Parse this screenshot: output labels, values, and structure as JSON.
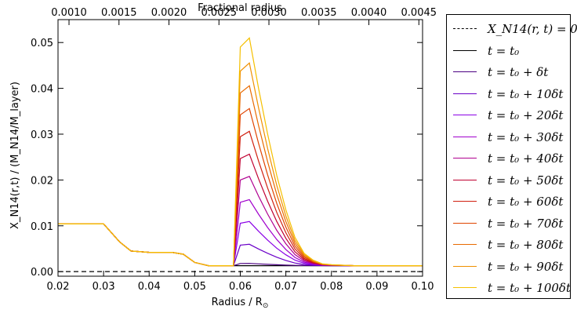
{
  "chart_data": {
    "type": "line",
    "xlabel": "Radius / R",
    "xlabel_sub": "⊙",
    "x2label": "Fractional radius",
    "ylabel": "X_N14(r,t) / (M_N14/M_layer)",
    "xlim": [
      0.02,
      0.1
    ],
    "ylim": [
      -0.001,
      0.055
    ],
    "x2lim": [
      0.00089,
      0.004537
    ],
    "xticks": [
      "0.02",
      "0.03",
      "0.04",
      "0.05",
      "0.06",
      "0.07",
      "0.08",
      "0.09",
      "0.10"
    ],
    "yticks": [
      "0.00",
      "0.01",
      "0.02",
      "0.03",
      "0.04",
      "0.05"
    ],
    "x2ticks": [
      "0.0010",
      "0.0015",
      "0.0020",
      "0.0025",
      "0.0030",
      "0.0035",
      "0.0040",
      "0.0045"
    ],
    "grid": false,
    "legend_position": "outside right",
    "zero_line": {
      "name": "X_N14(r,t) = 0",
      "label": "X_N14(r, t) = 0",
      "color": "#000000",
      "style": "dashed",
      "value": 0
    },
    "base_profile": {
      "x": [
        0.02,
        0.03,
        0.0335,
        0.036,
        0.04,
        0.045,
        0.0475,
        0.05,
        0.053,
        0.056,
        0.0585
      ],
      "y": [
        0.0104,
        0.0104,
        0.0065,
        0.0045,
        0.0042,
        0.0042,
        0.0038,
        0.002,
        0.0013,
        0.0013,
        0.0013
      ]
    },
    "peak_profile": {
      "x": [
        0.0585,
        0.06,
        0.062,
        0.064,
        0.066,
        0.068,
        0.07,
        0.072,
        0.074,
        0.076,
        0.078,
        0.08,
        0.085,
        0.1
      ],
      "y": [
        0.0013,
        0.049,
        0.051,
        0.04,
        0.03,
        0.021,
        0.0135,
        0.0075,
        0.004,
        0.0025,
        0.0017,
        0.0015,
        0.0013,
        0.0013
      ]
    },
    "series": [
      {
        "label": "t = t₀",
        "color": "#000000",
        "amplitude": 0.0
      },
      {
        "label": "t = t₀ + δt",
        "color": "#4b0082",
        "amplitude": 0.01
      },
      {
        "label": "t = t₀ + 10δt",
        "color": "#6a00c8",
        "amplitude": 0.094
      },
      {
        "label": "t = t₀ + 20δt",
        "color": "#8a00e6",
        "amplitude": 0.194
      },
      {
        "label": "t = t₀ + 30δt",
        "color": "#a000cc",
        "amplitude": 0.29
      },
      {
        "label": "t = t₀ + 40δt",
        "color": "#b00090",
        "amplitude": 0.392
      },
      {
        "label": "t = t₀ + 50δt",
        "color": "#c00030",
        "amplitude": 0.49
      },
      {
        "label": "t = t₀ + 60δt",
        "color": "#d02010",
        "amplitude": 0.59
      },
      {
        "label": "t = t₀ + 70δt",
        "color": "#e04400",
        "amplitude": 0.69
      },
      {
        "label": "t = t₀ + 80δt",
        "color": "#e86a00",
        "amplitude": 0.79
      },
      {
        "label": "t = t₀ + 90δt",
        "color": "#f09000",
        "amplitude": 0.89
      },
      {
        "label": "t = t₀ + 100δt",
        "color": "#f5c000",
        "amplitude": 1.0
      }
    ]
  }
}
